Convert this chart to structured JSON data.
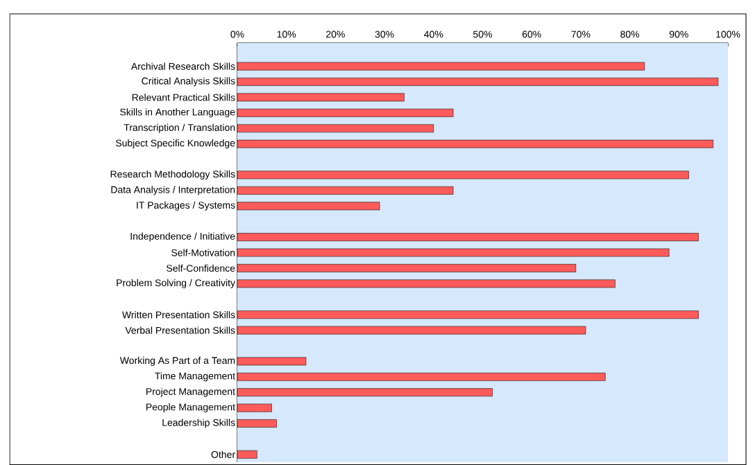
{
  "chart_data": {
    "type": "bar",
    "orientation": "horizontal",
    "color": "#ff5b5b",
    "categories": [
      null,
      "Archival Research Skills",
      "Critical Analysis Skills",
      "Relevant Practical Skills",
      "Skills in Another Language",
      "Transcription / Translation",
      "Subject Specific Knowledge",
      null,
      "Research Methodology Skills",
      "Data Analysis / Interpretation",
      "IT Packages / Systems",
      null,
      "Independence / Initiative",
      "Self-Motivation",
      "Self-Confidence",
      "Problem Solving / Creativity",
      null,
      "Written Presentation Skills",
      "Verbal Presentation Skills",
      null,
      "Working As Part of a Team",
      "Time Management",
      "Project Management",
      "People Management",
      "Leadership Skills",
      null,
      "Other"
    ],
    "values": [
      null,
      83,
      98,
      34,
      44,
      40,
      97,
      null,
      92,
      44,
      29,
      null,
      94,
      88,
      69,
      77,
      null,
      94,
      71,
      null,
      14,
      75,
      52,
      7,
      8,
      null,
      4
    ],
    "xlim": [
      0,
      100
    ],
    "xticks": [
      {
        "value": 0,
        "label": "0%"
      },
      {
        "value": 10,
        "label": "10%"
      },
      {
        "value": 20,
        "label": "20%"
      },
      {
        "value": 30,
        "label": "30%"
      },
      {
        "value": 40,
        "label": "40%"
      },
      {
        "value": 50,
        "label": "50%"
      },
      {
        "value": 60,
        "label": "60%"
      },
      {
        "value": 70,
        "label": "70%"
      },
      {
        "value": 80,
        "label": "80%"
      },
      {
        "value": 90,
        "label": "90%"
      },
      {
        "value": 100,
        "label": "100%"
      }
    ]
  }
}
